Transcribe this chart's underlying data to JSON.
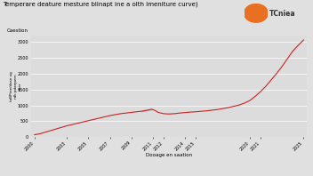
{
  "title": "Temperare deature mesture blinapt ine a olth imeniture curve)",
  "xlabel": "Dooage en saation",
  "ylabel": "toBPtee/dase ug\nrdk pdanpern\nther",
  "ylabel2": "Caestion",
  "bg_color": "#e0e0e0",
  "plot_bg": "#dcdcdc",
  "line_color": "#cc2222",
  "line_color2": "#aaaaaa",
  "logo_text": "TCniea",
  "logo_color": "#e87020",
  "x_min": 2000,
  "x_max": 2025,
  "y_min": 0,
  "y_max": 3200,
  "y_ticks": [
    0,
    500,
    1000,
    1500,
    2000,
    2500,
    3000
  ],
  "x_ticks": [
    2000,
    2003,
    2005,
    2007,
    2009,
    2011,
    2012,
    2014,
    2015,
    2020,
    2021,
    2025
  ],
  "data_x": [
    2000,
    2000.5,
    2001,
    2001.5,
    2002,
    2002.5,
    2003,
    2003.5,
    2004,
    2004.5,
    2005,
    2005.5,
    2006,
    2006.5,
    2007,
    2007.5,
    2008,
    2008.5,
    2009,
    2009.5,
    2010,
    2010.3,
    2010.6,
    2010.9,
    2011.2,
    2011.5,
    2012.0,
    2012.5,
    2013.0,
    2013.5,
    2014.0,
    2014.5,
    2015.0,
    2015.5,
    2016.0,
    2016.5,
    2017.0,
    2017.5,
    2018.0,
    2018.5,
    2019.0,
    2019.5,
    2020.0,
    2020.5,
    2021.0,
    2021.5,
    2022.0,
    2022.5,
    2023.0,
    2023.5,
    2024.0,
    2024.5,
    2025.0
  ],
  "data_y": [
    80,
    110,
    160,
    210,
    260,
    310,
    360,
    400,
    440,
    480,
    520,
    560,
    600,
    640,
    680,
    710,
    740,
    760,
    780,
    800,
    820,
    840,
    860,
    880,
    840,
    780,
    740,
    730,
    740,
    760,
    775,
    790,
    800,
    815,
    830,
    850,
    870,
    900,
    930,
    970,
    1010,
    1070,
    1150,
    1280,
    1430,
    1600,
    1800,
    2000,
    2220,
    2460,
    2700,
    2880,
    3050
  ],
  "gray_x": [
    2010.0,
    2010.3,
    2010.6,
    2010.9
  ],
  "gray_y": [
    800,
    820,
    840,
    860
  ]
}
